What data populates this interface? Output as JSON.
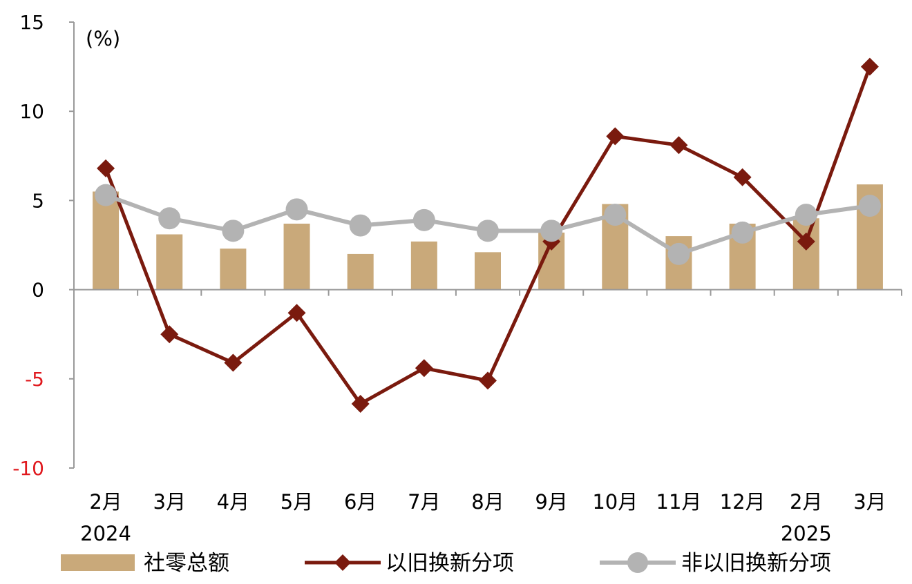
{
  "chart_data": {
    "type": "bar",
    "unit_label": "(%)",
    "categories": [
      "2月",
      "3月",
      "4月",
      "5月",
      "6月",
      "7月",
      "8月",
      "9月",
      "10月",
      "11月",
      "12月",
      "2月",
      "3月"
    ],
    "year_labels": [
      {
        "category_index": 0,
        "text": "2024"
      },
      {
        "category_index": 11,
        "text": "2025"
      }
    ],
    "y_ticks": [
      "15",
      "10",
      "5",
      "0",
      "-5",
      "-10"
    ],
    "ylim": [
      -10,
      15
    ],
    "grid": false,
    "legend_position": "bottom",
    "series": [
      {
        "name": "社零总额",
        "type": "bar",
        "color": "#c9a97a",
        "values": [
          5.5,
          3.1,
          2.3,
          3.7,
          2.0,
          2.7,
          2.1,
          3.2,
          4.8,
          3.0,
          3.7,
          4.0,
          5.9
        ]
      },
      {
        "name": "以旧换新分项",
        "type": "line",
        "marker": "diamond",
        "color": "#7a1a0e",
        "values": [
          6.8,
          -2.5,
          -4.1,
          -1.3,
          -6.4,
          -4.4,
          -5.1,
          2.7,
          8.6,
          8.1,
          6.3,
          2.7,
          12.5
        ]
      },
      {
        "name": "非以旧换新分项",
        "type": "line",
        "marker": "circle",
        "color": "#b3b3b3",
        "values": [
          5.3,
          4.0,
          3.3,
          4.5,
          3.6,
          3.9,
          3.3,
          3.3,
          4.2,
          2.0,
          3.2,
          4.2,
          4.7
        ]
      }
    ],
    "colors": {
      "axis": "#999999",
      "negative_tick": "#e0191e"
    }
  }
}
